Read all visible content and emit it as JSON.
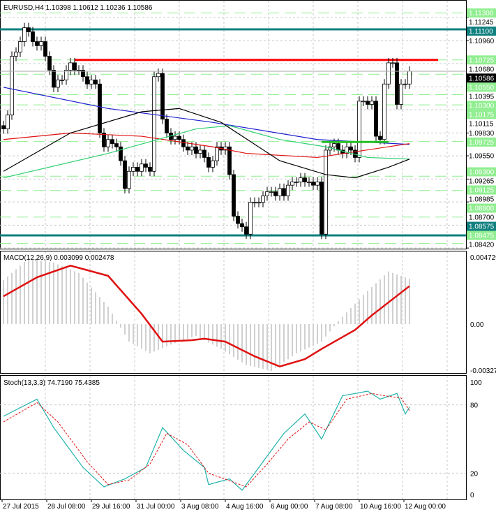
{
  "chart_data": {
    "type": "candlestick",
    "symbol_header": "EURUSD,H4  1.10398 1.10612 1.10236 1.10586",
    "current_price": 1.10586,
    "price_axis_ticks": [
      "1.11245",
      "1.10960",
      "1.10680",
      "1.10395",
      "1.10115",
      "1.09830",
      "1.09550",
      "1.09265",
      "1.08985",
      "1.08700",
      "1.08420"
    ],
    "price_range": [
      1.084,
      1.1137
    ],
    "levels": [
      {
        "label": "1.11300",
        "price": 1.113,
        "style": "green-dash"
      },
      {
        "label": "1.11100",
        "price": 1.111,
        "style": "teal"
      },
      {
        "label": "1.10725",
        "price": 1.10725,
        "style": "green-dash"
      },
      {
        "label": "1.10550",
        "price": 1.1055,
        "style": "green-dash"
      },
      {
        "label": "1.10300",
        "price": 1.103,
        "style": "green-dash"
      },
      {
        "label": "1.10175",
        "price": 1.10175,
        "style": "green-dash"
      },
      {
        "label": "1.09725",
        "price": 1.09725,
        "style": "green-dash"
      },
      {
        "label": "1.09300",
        "price": 1.093,
        "style": "green-dash"
      },
      {
        "label": "1.09125",
        "price": 1.09125,
        "style": "green-dash"
      },
      {
        "label": "1.08800",
        "price": 1.088,
        "style": "green-dash"
      },
      {
        "label": "1.08575",
        "price": 1.08575,
        "style": "teal"
      },
      {
        "label": "1.08475",
        "price": 1.08475,
        "style": "green-dash"
      }
    ],
    "resistance_red": {
      "price": 1.10725,
      "from_index": 17
    },
    "support_green": {
      "price": 1.0972,
      "from_index": 76,
      "to_index": 92
    },
    "closes": [
      1.0988,
      1.1005,
      1.1077,
      1.1082,
      1.1095,
      1.1112,
      1.1107,
      1.1095,
      1.109,
      1.1095,
      1.1077,
      1.106,
      1.1039,
      1.1048,
      1.1048,
      1.106,
      1.1069,
      1.106,
      1.106,
      1.1052,
      1.1043,
      1.1048,
      1.1043,
      1.0983,
      1.0966,
      1.0975,
      1.097,
      1.0966,
      1.0949,
      1.0915,
      1.0936,
      1.0941,
      1.0936,
      1.0945,
      1.0941,
      1.0936,
      1.1052,
      1.1056,
      1.1,
      1.0983,
      1.0975,
      1.0979,
      1.0975,
      1.0966,
      1.0962,
      1.0966,
      1.0958,
      1.0962,
      1.0953,
      1.0941,
      1.0949,
      1.0966,
      1.0962,
      1.0966,
      1.0932,
      1.0881,
      1.0872,
      1.0868,
      1.0859,
      1.0898,
      1.0898,
      1.0898,
      1.0906,
      1.0911,
      1.0911,
      1.0906,
      1.0915,
      1.0906,
      1.0919,
      1.0923,
      1.0923,
      1.0928,
      1.0923,
      1.0923,
      1.0919,
      1.0923,
      1.0859,
      1.0962,
      1.0966,
      1.097,
      1.0962,
      1.0958,
      1.0966,
      1.0962,
      1.0953,
      1.1022,
      1.1022,
      1.1018,
      1.1022,
      1.0979,
      1.0975,
      1.1043,
      1.1069,
      1.1069,
      1.1018,
      1.1043,
      1.1043,
      1.10586
    ],
    "ma_series": [
      {
        "name": "blue",
        "color": "#1f1fcf",
        "points": [
          [
            0,
            1.1039
          ],
          [
            25,
            1.1013
          ],
          [
            50,
            1.0996
          ],
          [
            75,
            1.0975
          ],
          [
            97,
            1.0969
          ]
        ]
      },
      {
        "name": "red",
        "color": "#e01010",
        "points": [
          [
            0,
            1.0975
          ],
          [
            16,
            1.0983
          ],
          [
            33,
            1.0979
          ],
          [
            50,
            1.0966
          ],
          [
            58,
            1.0958
          ],
          [
            75,
            1.0953
          ],
          [
            97,
            1.097
          ]
        ]
      },
      {
        "name": "green",
        "color": "#30d070",
        "points": [
          [
            0,
            1.0928
          ],
          [
            25,
            1.0958
          ],
          [
            46,
            1.0988
          ],
          [
            54,
            1.0992
          ],
          [
            66,
            1.0975
          ],
          [
            77,
            1.0966
          ],
          [
            87,
            1.0953
          ],
          [
            97,
            1.0951
          ]
        ]
      },
      {
        "name": "black",
        "color": "#000000",
        "points": [
          [
            0,
            1.0936
          ],
          [
            16,
            1.0983
          ],
          [
            33,
            1.1009
          ],
          [
            42,
            1.1013
          ],
          [
            52,
            1.0996
          ],
          [
            66,
            1.0949
          ],
          [
            77,
            1.0932
          ],
          [
            84,
            1.0928
          ],
          [
            92,
            1.0941
          ],
          [
            97,
            1.0951
          ]
        ]
      }
    ],
    "macd": {
      "label": "MACD(12,26,9) 0.003099 0.002478",
      "axis_ticks": [
        "0.004729",
        "0.00",
        "-0.003277"
      ],
      "range": [
        -0.003277,
        0.004729
      ],
      "signal": [
        [
          0,
          0.0019
        ],
        [
          8,
          0.0032
        ],
        [
          16,
          0.004
        ],
        [
          25,
          0.0033
        ],
        [
          33,
          0.0007
        ],
        [
          38,
          -0.0012
        ],
        [
          45,
          -0.0011
        ],
        [
          48,
          -0.001
        ],
        [
          53,
          -0.0012
        ],
        [
          60,
          -0.0022
        ],
        [
          66,
          -0.0029
        ],
        [
          72,
          -0.0024
        ],
        [
          76,
          -0.0017
        ],
        [
          84,
          -0.0004
        ],
        [
          88,
          0.0006
        ],
        [
          97,
          0.0026
        ]
      ],
      "histogram": [
        [
          0,
          0.003
        ],
        [
          6,
          0.0045
        ],
        [
          12,
          0.0042
        ],
        [
          18,
          0.0035
        ],
        [
          25,
          0.0012
        ],
        [
          30,
          -0.0012
        ],
        [
          35,
          -0.002
        ],
        [
          40,
          -0.0014
        ],
        [
          46,
          -0.0008
        ],
        [
          52,
          -0.0017
        ],
        [
          58,
          -0.0028
        ],
        [
          64,
          -0.0032
        ],
        [
          70,
          -0.002
        ],
        [
          76,
          -0.0012
        ],
        [
          80,
          0.0002
        ],
        [
          86,
          0.002
        ],
        [
          92,
          0.0036
        ],
        [
          97,
          0.0031
        ]
      ]
    },
    "stoch": {
      "label": "Stoch(13,3,3) 74.7190 75.4385",
      "axis_ticks": [
        "100",
        "80",
        "20",
        "0"
      ],
      "main": [
        [
          0,
          70
        ],
        [
          8,
          85
        ],
        [
          12,
          60
        ],
        [
          19,
          25
        ],
        [
          24,
          8
        ],
        [
          29,
          15
        ],
        [
          34,
          25
        ],
        [
          38,
          60
        ],
        [
          43,
          40
        ],
        [
          48,
          25
        ],
        [
          49,
          10
        ],
        [
          54,
          15
        ],
        [
          57,
          5
        ],
        [
          62,
          30
        ],
        [
          67,
          55
        ],
        [
          72,
          72
        ],
        [
          76,
          50
        ],
        [
          81,
          88
        ],
        [
          87,
          92
        ],
        [
          90,
          85
        ],
        [
          94,
          90
        ],
        [
          96,
          72
        ],
        [
          97,
          78
        ]
      ],
      "signal": [
        [
          0,
          65
        ],
        [
          8,
          82
        ],
        [
          13,
          65
        ],
        [
          20,
          30
        ],
        [
          25,
          10
        ],
        [
          30,
          14
        ],
        [
          35,
          28
        ],
        [
          39,
          55
        ],
        [
          44,
          45
        ],
        [
          49,
          20
        ],
        [
          55,
          12
        ],
        [
          58,
          8
        ],
        [
          63,
          28
        ],
        [
          68,
          50
        ],
        [
          73,
          65
        ],
        [
          77,
          58
        ],
        [
          82,
          85
        ],
        [
          88,
          90
        ],
        [
          91,
          88
        ],
        [
          95,
          86
        ],
        [
          97,
          75
        ]
      ]
    },
    "x_ticks": [
      "27 Jul 2015",
      "28 Jul 08:00",
      "29 Jul 16:00",
      "31 Jul 00:00",
      "3 Aug 08:00",
      "4 Aug 16:00",
      "6 Aug 00:00",
      "7 Aug 08:00",
      "10 Aug 16:00",
      "12 Aug 00:00"
    ]
  }
}
